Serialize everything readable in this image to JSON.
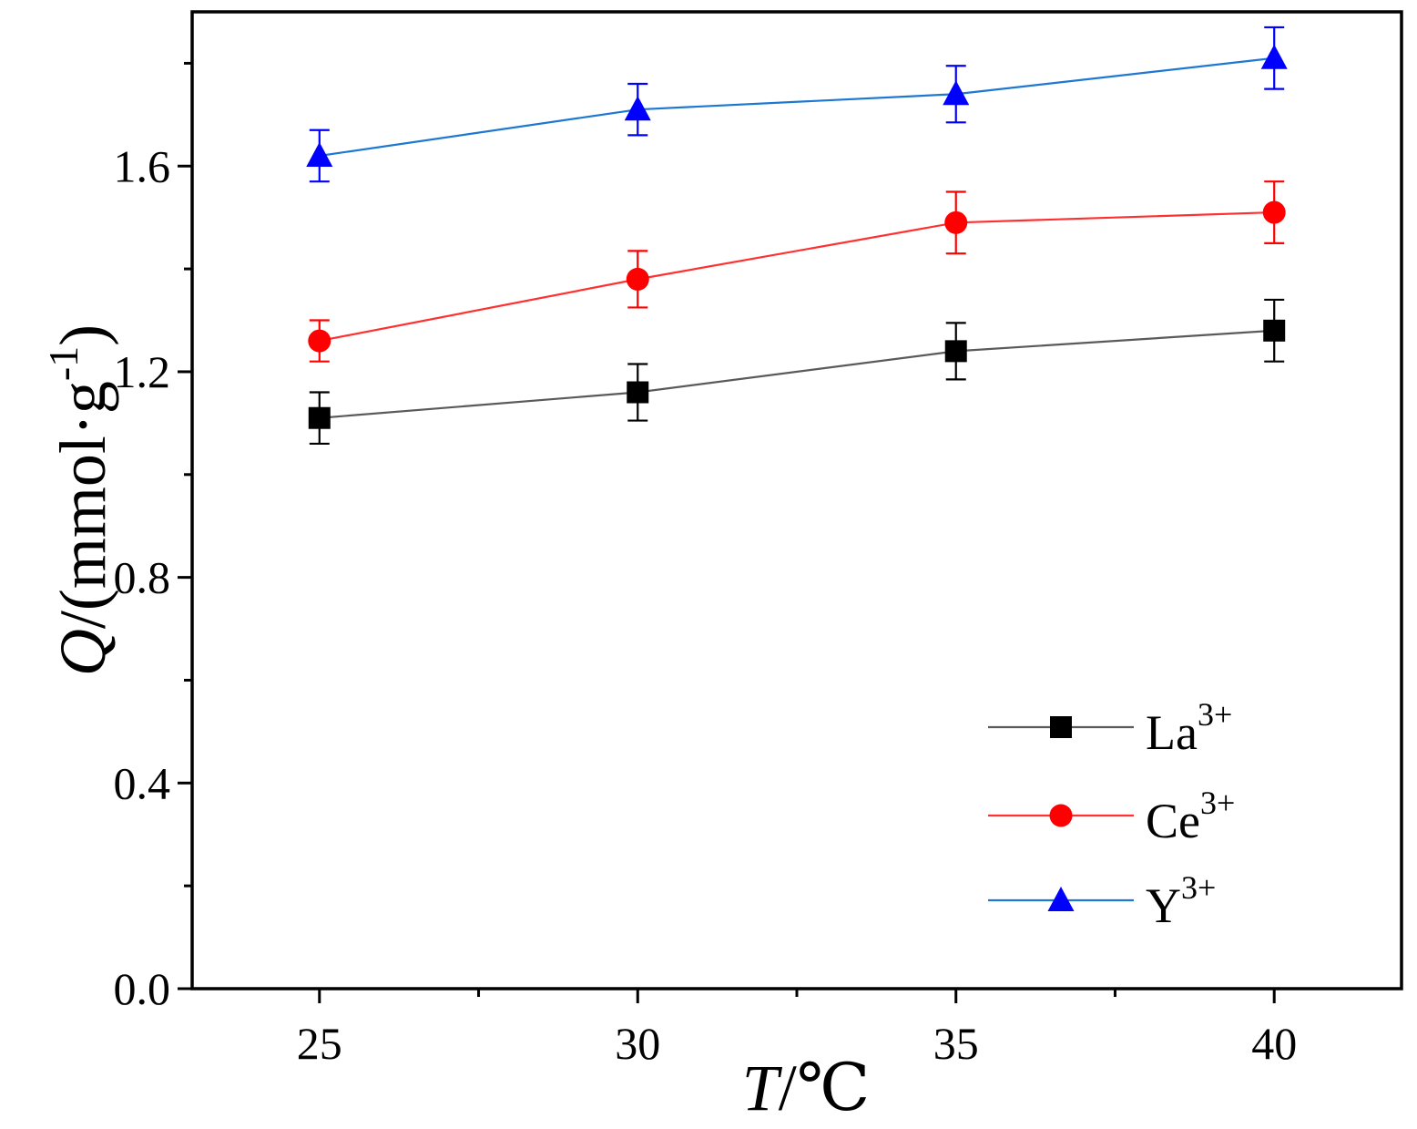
{
  "chart_data": {
    "type": "line",
    "title": "",
    "x": [
      25,
      30,
      35,
      40
    ],
    "xlim": [
      23,
      42
    ],
    "ylim": [
      0,
      1.9
    ],
    "xticks": [
      25,
      30,
      35,
      40
    ],
    "xtick_labels": [
      "25",
      "30",
      "35",
      "40"
    ],
    "yticks": [
      0,
      0.4,
      0.8,
      1.2,
      1.6
    ],
    "ytick_labels": [
      "0.0",
      "0.4",
      "0.8",
      "1.2",
      "1.6"
    ],
    "xlabel": {
      "var": "T",
      "rest": "/℃"
    },
    "ylabel": {
      "var": "Q",
      "rest": "/(mmol·g",
      "sup": "-1",
      "close": ")"
    },
    "grid": false,
    "legend_position": "bottom-right",
    "series": [
      {
        "name": "La",
        "charge": "3+",
        "marker": "square",
        "line_color": "#5a5a5a",
        "marker_color": "#000000",
        "values": [
          1.11,
          1.16,
          1.24,
          1.28
        ],
        "errors": [
          0.05,
          0.055,
          0.055,
          0.06
        ]
      },
      {
        "name": "Ce",
        "charge": "3+",
        "marker": "circle",
        "line_color": "#ff3030",
        "marker_color": "#ff0000",
        "values": [
          1.26,
          1.38,
          1.49,
          1.51
        ],
        "errors": [
          0.04,
          0.055,
          0.06,
          0.06
        ]
      },
      {
        "name": "Y",
        "charge": "3+",
        "marker": "triangle",
        "line_color": "#1e78d2",
        "marker_color": "#0000ff",
        "values": [
          1.62,
          1.71,
          1.74,
          1.81
        ],
        "errors": [
          0.05,
          0.05,
          0.055,
          0.06
        ]
      }
    ]
  }
}
